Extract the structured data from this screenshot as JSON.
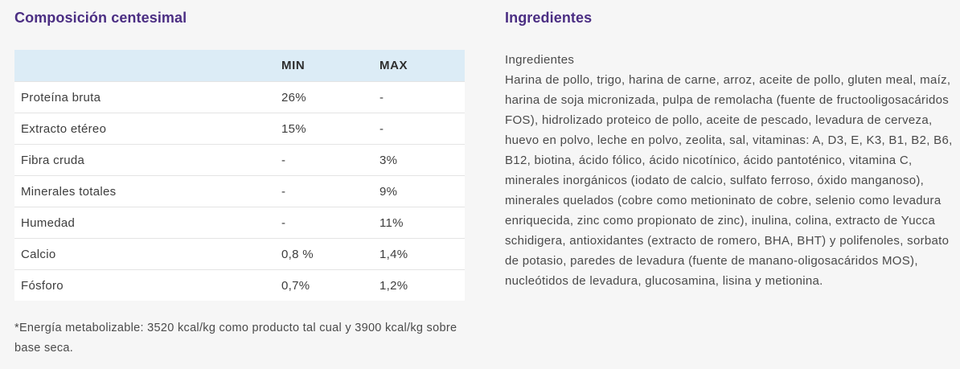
{
  "composition": {
    "title": "Composición centesimal",
    "headers": {
      "name": "",
      "min": "MIN",
      "max": "MAX"
    },
    "rows": [
      {
        "name": "Proteína bruta",
        "min": "26%",
        "max": "-"
      },
      {
        "name": "Extracto etéreo",
        "min": "15%",
        "max": "-"
      },
      {
        "name": "Fibra cruda",
        "min": "-",
        "max": "3%"
      },
      {
        "name": "Minerales totales",
        "min": "-",
        "max": "9%"
      },
      {
        "name": "Humedad",
        "min": "-",
        "max": "11%"
      },
      {
        "name": "Calcio",
        "min": "0,8 %",
        "max": "1,4%"
      },
      {
        "name": "Fósforo",
        "min": "0,7%",
        "max": "1,2%"
      }
    ],
    "footnote": "*Energía metabolizable: 3520 kcal/kg como producto tal cual y 3900 kcal/kg sobre base seca."
  },
  "ingredients": {
    "title": "Ingredientes",
    "label": "Ingredientes",
    "text": "Harina de pollo, trigo, harina de carne, arroz, aceite de pollo, gluten meal, maíz, harina de soja micronizada, pulpa de remolacha (fuente de fructooligosacáridos FOS), hidrolizado proteico de pollo, aceite de pescado, levadura de cerveza, huevo en polvo, leche en polvo, zeolita, sal, vitaminas: A, D3, E, K3, B1, B2, B6, B12, biotina, ácido fólico, ácido nicotínico, ácido pantoténico, vitamina C, minerales inorgánicos (iodato de calcio, sulfato ferroso, óxido manganoso), minerales quelados (cobre como metioninato de cobre, selenio como levadura enriquecida, zinc como propionato de zinc), inulina, colina, extracto de Yucca schidigera, antioxidantes (extracto de romero, BHA, BHT) y polifenoles, sorbato de potasio, paredes de levadura (fuente de manano-oligosacáridos MOS), nucleótidos de levadura, glucosamina, lisina y metionina."
  }
}
